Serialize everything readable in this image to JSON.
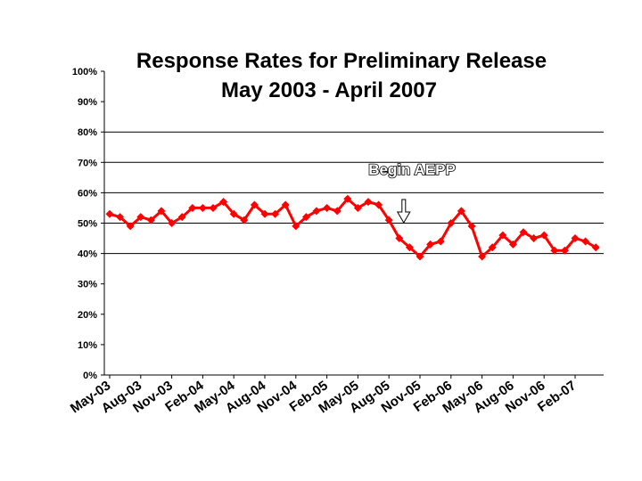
{
  "chart_data": {
    "type": "line",
    "title": "Response Rates for Preliminary Release",
    "subtitle": "May 2003 - April 2007",
    "xlabel": "",
    "ylabel": "",
    "ylim": [
      0,
      100
    ],
    "y_ticks": [
      "0%",
      "10%",
      "20%",
      "30%",
      "40%",
      "50%",
      "60%",
      "70%",
      "80%",
      "90%",
      "100%"
    ],
    "x_tick_labels": [
      "May-03",
      "Aug-03",
      "Nov-03",
      "Feb-04",
      "May-04",
      "Aug-04",
      "Nov-04",
      "Feb-05",
      "May-05",
      "Aug-05",
      "Nov-05",
      "Feb-06",
      "May-06",
      "Aug-06",
      "Nov-06",
      "Feb-07"
    ],
    "grid": "horizontal at 40%, 50%, 60%, 70%, 80%",
    "legend": "none",
    "series": [
      {
        "name": "Response Rate",
        "color": "#ff0000",
        "values": [
          53,
          52,
          49,
          52,
          51,
          54,
          50,
          52,
          55,
          55,
          55,
          57,
          53,
          51,
          56,
          53,
          53,
          56,
          49,
          52,
          54,
          55,
          54,
          58,
          55,
          57,
          56,
          51,
          45,
          42,
          39,
          43,
          44,
          50,
          54,
          49,
          39,
          42,
          46,
          43,
          47,
          45,
          46,
          41,
          41,
          45,
          44,
          42
        ]
      }
    ],
    "annotation": {
      "text": "Begin AEPP",
      "arrow_at_index": 28
    }
  }
}
